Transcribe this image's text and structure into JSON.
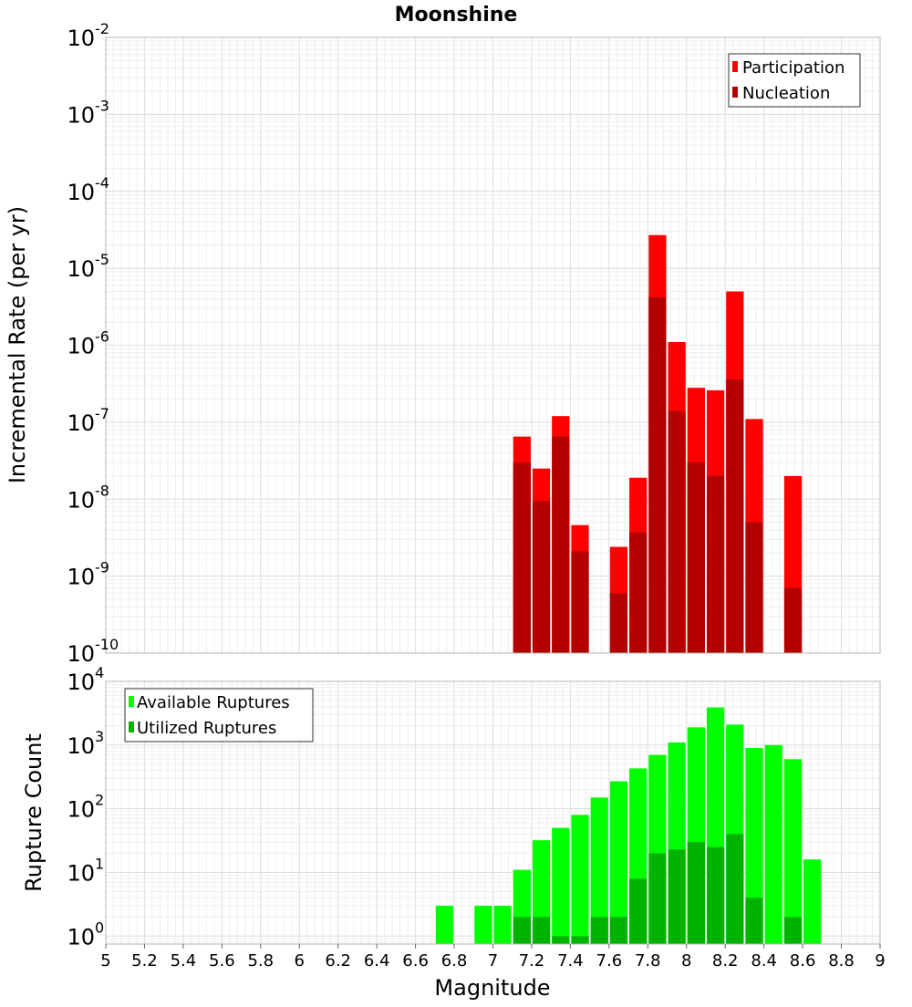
{
  "title": "Moonshine",
  "xlabel": "Magnitude",
  "x_ticks": [
    "5",
    "5.2",
    "5.4",
    "5.6",
    "5.8",
    "6",
    "6.2",
    "6.4",
    "6.6",
    "6.8",
    "7",
    "7.2",
    "7.4",
    "7.6",
    "7.8",
    "8",
    "8.2",
    "8.4",
    "8.6",
    "8.8",
    "9"
  ],
  "colors": {
    "participation": "#ff0000",
    "nucleation": "#b30000",
    "available": "#00ff00",
    "utilized": "#00b300",
    "grid": "#e6e6e6",
    "frame": "#b4b4b4"
  },
  "chart_data": [
    {
      "type": "bar",
      "title": "Moonshine",
      "ylabel": "Incremental Rate (per yr)",
      "yscale": "log",
      "xlim": [
        5,
        9
      ],
      "ylim": [
        1e-10,
        0.01
      ],
      "y_ticks": [
        {
          "base": "10",
          "exp": "-10"
        },
        {
          "base": "10",
          "exp": "-9"
        },
        {
          "base": "10",
          "exp": "-8"
        },
        {
          "base": "10",
          "exp": "-7"
        },
        {
          "base": "10",
          "exp": "-6"
        },
        {
          "base": "10",
          "exp": "-5"
        },
        {
          "base": "10",
          "exp": "-4"
        },
        {
          "base": "10",
          "exp": "-3"
        },
        {
          "base": "10",
          "exp": "-2"
        }
      ],
      "bin_width": 0.1,
      "x": [
        7.15,
        7.25,
        7.35,
        7.45,
        7.65,
        7.75,
        7.85,
        7.95,
        8.05,
        8.15,
        8.25,
        8.35,
        8.55
      ],
      "series": [
        {
          "name": "Participation",
          "values": [
            6.5e-08,
            2.5e-08,
            1.2e-07,
            4.6e-09,
            2.4e-09,
            1.9e-08,
            2.7e-05,
            1.1e-06,
            2.8e-07,
            2.6e-07,
            5e-06,
            1.1e-07,
            2e-08
          ]
        },
        {
          "name": "Nucleation",
          "values": [
            3e-08,
            9.5e-09,
            6.5e-08,
            2.1e-09,
            6e-10,
            3.7e-09,
            4.2e-06,
            1.4e-07,
            3e-08,
            2e-08,
            3.6e-07,
            5e-09,
            7e-10
          ]
        }
      ],
      "legend_position": "top-right",
      "grid": true
    },
    {
      "type": "bar",
      "ylabel": "Rupture Count",
      "yscale": "log",
      "xlim": [
        5,
        9
      ],
      "ylim": [
        0.75,
        10000
      ],
      "y_ticks": [
        {
          "base": "10",
          "exp": "0",
          "value": 1
        },
        {
          "base": "10",
          "exp": "1",
          "value": 10
        },
        {
          "base": "10",
          "exp": "2",
          "value": 100
        },
        {
          "base": "10",
          "exp": "3",
          "value": 1000
        },
        {
          "base": "10",
          "exp": "4",
          "value": 10000
        }
      ],
      "bin_width": 0.1,
      "x": [
        6.75,
        6.95,
        7.05,
        7.15,
        7.25,
        7.35,
        7.45,
        7.55,
        7.65,
        7.75,
        7.85,
        7.95,
        8.05,
        8.15,
        8.25,
        8.35,
        8.45,
        8.55,
        8.65
      ],
      "series": [
        {
          "name": "Available Ruptures",
          "values": [
            3,
            3,
            3,
            11,
            32,
            50,
            80,
            150,
            270,
            430,
            700,
            1100,
            1900,
            3900,
            2100,
            900,
            1000,
            600,
            16
          ]
        },
        {
          "name": "Utilized Ruptures",
          "values": [
            null,
            null,
            null,
            2,
            2,
            1,
            1,
            2,
            2,
            8,
            20,
            23,
            30,
            25,
            40,
            4,
            null,
            2,
            null
          ]
        }
      ],
      "legend_position": "top-left",
      "grid": true
    }
  ]
}
